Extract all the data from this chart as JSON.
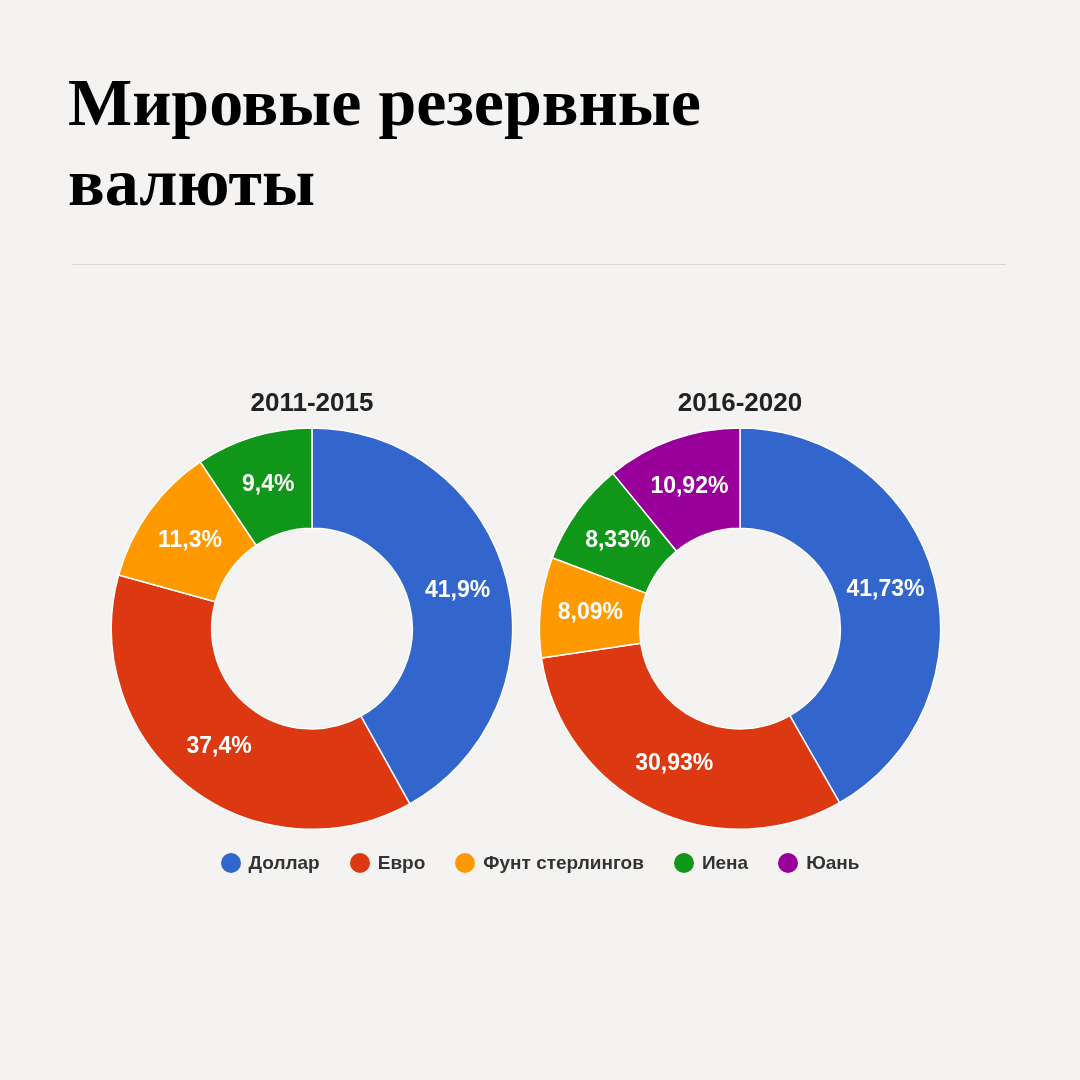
{
  "chart_data": {
    "type": "donut",
    "title": "Мировые резервные валюты",
    "categories": [
      "Доллар",
      "Евро",
      "Фунт стерлингов",
      "Иена",
      "Юань"
    ],
    "colors": [
      "#3366cc",
      "#dc3912",
      "#ff9900",
      "#109618",
      "#990099"
    ],
    "legend": "bottom",
    "series": [
      {
        "name": "2011-2015",
        "values": [
          41.9,
          37.4,
          11.3,
          9.4,
          null
        ],
        "value_labels": [
          "41,9%",
          "37,4%",
          "11,3%",
          "9,4%",
          null
        ]
      },
      {
        "name": "2016-2020",
        "values": [
          41.73,
          30.93,
          8.09,
          8.33,
          10.92
        ],
        "value_labels": [
          "41,73%",
          "30,93%",
          "8,09%",
          "8,33%",
          "10,92%"
        ]
      }
    ]
  }
}
